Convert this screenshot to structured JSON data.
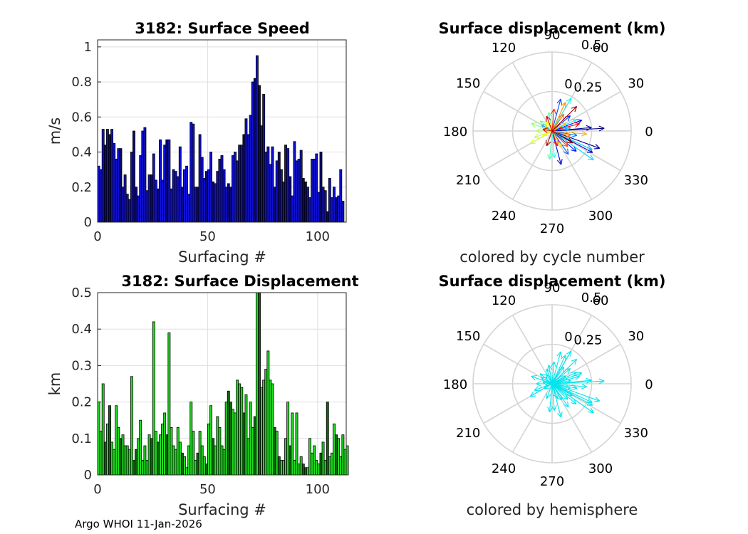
{
  "footer": {
    "text": "Argo WHOI 11-Jan-2026"
  },
  "colors": {
    "speed_bar": "#1010d0",
    "speed_bar_dark": "#0a0a70",
    "disp_bar": "#22dd22",
    "disp_bar_dark": "#116611",
    "hemisphere_arrow": "#00e5ee"
  },
  "chart_data": [
    {
      "type": "bar",
      "title": "3182: Surface Speed",
      "xlabel": "Surfacing #",
      "ylabel": "m/s",
      "xlim": [
        0,
        113
      ],
      "ylim": [
        0,
        1.04
      ],
      "xticks": [
        0,
        50,
        100
      ],
      "xtick_labels": [
        "0",
        "50",
        "100"
      ],
      "yticks": [
        0,
        0.2,
        0.4,
        0.6,
        0.8,
        1
      ],
      "ytick_labels": [
        "0",
        "0.2",
        "0.4",
        "0.6",
        "0.8",
        "1"
      ],
      "grid": true,
      "values": [
        0.32,
        0.3,
        0.53,
        0.44,
        0.53,
        0.5,
        0.53,
        0.45,
        0.36,
        0.42,
        0.42,
        0.2,
        0.27,
        0.16,
        0.13,
        0.4,
        0.52,
        0.2,
        0.15,
        0.38,
        0.52,
        0.54,
        0.18,
        0.27,
        0.27,
        0.39,
        0.24,
        0.19,
        0.47,
        0.24,
        0.44,
        0.47,
        0.47,
        0.19,
        0.3,
        0.29,
        0.26,
        0.43,
        0.2,
        0.3,
        0.32,
        0.16,
        0.57,
        0.56,
        0.2,
        0.2,
        0.5,
        0.37,
        0.25,
        0.29,
        0.3,
        0.4,
        0.23,
        0.22,
        0.29,
        0.36,
        0.38,
        0.3,
        0.2,
        0.22,
        0.2,
        0.38,
        0.4,
        0.35,
        0.44,
        0.44,
        0.5,
        0.59,
        0.5,
        0.61,
        0.8,
        0.82,
        0.95,
        0.78,
        0.55,
        0.73,
        0.4,
        0.43,
        0.33,
        0.43,
        0.2,
        0.35,
        0.4,
        0.3,
        0.23,
        0.44,
        0.42,
        0.26,
        0.15,
        0.46,
        0.35,
        0.36,
        0.41,
        0.25,
        0.23,
        0.2,
        0.14,
        0.36,
        0.36,
        0.39,
        0.17,
        0.4,
        0.2,
        0.18,
        0.06,
        0.25,
        0.14,
        0.2,
        0.14,
        0.15,
        0.3,
        0.12
      ]
    },
    {
      "type": "bar",
      "title": "3182: Surface Displacement",
      "xlabel": "Surfacing #",
      "ylabel": "km",
      "xlim": [
        0,
        113
      ],
      "ylim": [
        0,
        0.5
      ],
      "xticks": [
        0,
        50,
        100
      ],
      "xtick_labels": [
        "0",
        "50",
        "100"
      ],
      "yticks": [
        0,
        0.1,
        0.2,
        0.3,
        0.4,
        0.5
      ],
      "ytick_labels": [
        "0",
        "0.1",
        "0.2",
        "0.3",
        "0.4",
        "0.5"
      ],
      "grid": true,
      "values": [
        0.2,
        0.12,
        0.25,
        0.09,
        0.14,
        0.19,
        0.09,
        0.07,
        0.19,
        0.13,
        0.1,
        0.11,
        0.08,
        0.08,
        0.07,
        0.27,
        0.04,
        0.07,
        0.1,
        0.15,
        0.04,
        0.08,
        0.04,
        0.11,
        0.1,
        0.42,
        0.12,
        0.09,
        0.11,
        0.14,
        0.17,
        0.11,
        0.39,
        0.13,
        0.08,
        0.07,
        0.13,
        0.09,
        0.06,
        0.05,
        0.02,
        0.08,
        0.2,
        0.12,
        0.04,
        0.06,
        0.12,
        0.08,
        0.05,
        0.03,
        0.14,
        0.19,
        0.1,
        0.08,
        0.16,
        0.13,
        0.08,
        0.07,
        0.2,
        0.23,
        0.2,
        0.18,
        0.17,
        0.26,
        0.25,
        0.24,
        0.17,
        0.22,
        0.1,
        0.2,
        0.13,
        0.16,
        0.5,
        0.5,
        0.24,
        0.26,
        0.29,
        0.34,
        0.26,
        0.25,
        0.13,
        0.12,
        0.05,
        0.04,
        0.04,
        0.1,
        0.2,
        0.08,
        0.17,
        0.04,
        0.17,
        0.03,
        0.05,
        0.03,
        0.02,
        0.02,
        0.1,
        0.06,
        0.08,
        0.04,
        0.03,
        0.06,
        0.09,
        0.04,
        0.2,
        0.05,
        0.06,
        0.14,
        0.11,
        0.1,
        0.05,
        0.11,
        0.07,
        0.08
      ]
    },
    {
      "type": "polar-arrows",
      "title": "Surface displacement (km)",
      "caption": "colored by cycle number",
      "rmax": 0.5,
      "radial_ticks": [
        0.25,
        0.5
      ],
      "radial_tick_labels": [
        "0.25",
        "0.5"
      ],
      "zero_label": "0",
      "angle_ticks": [
        0,
        30,
        60,
        90,
        120,
        150,
        180,
        210,
        240,
        270,
        300,
        330
      ],
      "angle_tick_labels": [
        "0",
        "30",
        "60",
        "90",
        "120",
        "150",
        "180",
        "210",
        "240",
        "270",
        "300",
        "330"
      ],
      "color_mode": "cycle",
      "vectors": [
        {
          "angle_deg": 3,
          "r": 0.33
        },
        {
          "angle_deg": -20,
          "r": 0.32
        },
        {
          "angle_deg": 5,
          "r": 0.25
        },
        {
          "angle_deg": -28,
          "r": 0.29
        },
        {
          "angle_deg": -75,
          "r": 0.22
        },
        {
          "angle_deg": 20,
          "r": 0.2
        },
        {
          "angle_deg": -40,
          "r": 0.2
        },
        {
          "angle_deg": 40,
          "r": 0.15
        },
        {
          "angle_deg": 75,
          "r": 0.21
        },
        {
          "angle_deg": -55,
          "r": 0.18
        },
        {
          "angle_deg": -10,
          "r": 0.16
        },
        {
          "angle_deg": 150,
          "r": 0.08
        },
        {
          "angle_deg": 10,
          "r": 0.12
        },
        {
          "angle_deg": -25,
          "r": 0.28
        },
        {
          "angle_deg": -35,
          "r": 0.32
        },
        {
          "angle_deg": 25,
          "r": 0.17
        },
        {
          "angle_deg": 60,
          "r": 0.24
        },
        {
          "angle_deg": -85,
          "r": 0.17
        },
        {
          "angle_deg": -95,
          "r": 0.18
        },
        {
          "angle_deg": 100,
          "r": 0.12
        },
        {
          "angle_deg": 140,
          "r": 0.1
        },
        {
          "angle_deg": 160,
          "r": 0.14
        },
        {
          "angle_deg": 180,
          "r": 0.1
        },
        {
          "angle_deg": 200,
          "r": 0.12
        },
        {
          "angle_deg": 210,
          "r": 0.16
        },
        {
          "angle_deg": -150,
          "r": 0.06
        },
        {
          "angle_deg": 120,
          "r": 0.07
        },
        {
          "angle_deg": -60,
          "r": 0.12
        },
        {
          "angle_deg": 30,
          "r": 0.1
        },
        {
          "angle_deg": -5,
          "r": 0.22
        },
        {
          "angle_deg": 65,
          "r": 0.2
        },
        {
          "angle_deg": -15,
          "r": 0.12
        },
        {
          "angle_deg": 55,
          "r": 0.13
        },
        {
          "angle_deg": -45,
          "r": 0.14
        },
        {
          "angle_deg": 85,
          "r": 0.14
        },
        {
          "angle_deg": -70,
          "r": 0.1
        },
        {
          "angle_deg": 15,
          "r": 0.18
        },
        {
          "angle_deg": 170,
          "r": 0.06
        },
        {
          "angle_deg": 110,
          "r": 0.1
        },
        {
          "angle_deg": -110,
          "r": 0.1
        },
        {
          "angle_deg": 45,
          "r": 0.22
        },
        {
          "angle_deg": -30,
          "r": 0.15
        }
      ]
    },
    {
      "type": "polar-arrows",
      "title": "Surface displacement (km)",
      "caption": "colored by hemisphere",
      "rmax": 0.5,
      "radial_ticks": [
        0.25,
        0.5
      ],
      "radial_tick_labels": [
        "0.25",
        "0.5"
      ],
      "zero_label": "0",
      "angle_ticks": [
        0,
        30,
        60,
        90,
        120,
        150,
        180,
        210,
        240,
        270,
        300,
        330
      ],
      "angle_tick_labels": [
        "0",
        "30",
        "60",
        "90",
        "120",
        "150",
        "180",
        "210",
        "240",
        "270",
        "300",
        "330"
      ],
      "color_mode": "hemisphere",
      "vectors": [
        {
          "angle_deg": 3,
          "r": 0.33
        },
        {
          "angle_deg": -20,
          "r": 0.32
        },
        {
          "angle_deg": 5,
          "r": 0.25
        },
        {
          "angle_deg": -28,
          "r": 0.29
        },
        {
          "angle_deg": -75,
          "r": 0.22
        },
        {
          "angle_deg": 20,
          "r": 0.2
        },
        {
          "angle_deg": -40,
          "r": 0.2
        },
        {
          "angle_deg": 40,
          "r": 0.15
        },
        {
          "angle_deg": 75,
          "r": 0.21
        },
        {
          "angle_deg": -55,
          "r": 0.18
        },
        {
          "angle_deg": -10,
          "r": 0.16
        },
        {
          "angle_deg": 150,
          "r": 0.08
        },
        {
          "angle_deg": 10,
          "r": 0.12
        },
        {
          "angle_deg": -25,
          "r": 0.28
        },
        {
          "angle_deg": -35,
          "r": 0.32
        },
        {
          "angle_deg": 25,
          "r": 0.17
        },
        {
          "angle_deg": 60,
          "r": 0.24
        },
        {
          "angle_deg": -85,
          "r": 0.17
        },
        {
          "angle_deg": -95,
          "r": 0.18
        },
        {
          "angle_deg": 100,
          "r": 0.12
        },
        {
          "angle_deg": 140,
          "r": 0.1
        },
        {
          "angle_deg": 160,
          "r": 0.14
        },
        {
          "angle_deg": 180,
          "r": 0.1
        },
        {
          "angle_deg": 200,
          "r": 0.12
        },
        {
          "angle_deg": 210,
          "r": 0.16
        },
        {
          "angle_deg": -150,
          "r": 0.06
        },
        {
          "angle_deg": 120,
          "r": 0.07
        },
        {
          "angle_deg": -60,
          "r": 0.12
        },
        {
          "angle_deg": 30,
          "r": 0.1
        },
        {
          "angle_deg": -5,
          "r": 0.22
        },
        {
          "angle_deg": 65,
          "r": 0.2
        },
        {
          "angle_deg": -15,
          "r": 0.12
        },
        {
          "angle_deg": 55,
          "r": 0.13
        },
        {
          "angle_deg": -45,
          "r": 0.14
        },
        {
          "angle_deg": 85,
          "r": 0.14
        },
        {
          "angle_deg": -70,
          "r": 0.1
        },
        {
          "angle_deg": 15,
          "r": 0.18
        },
        {
          "angle_deg": 170,
          "r": 0.06
        },
        {
          "angle_deg": 110,
          "r": 0.1
        },
        {
          "angle_deg": -110,
          "r": 0.1
        },
        {
          "angle_deg": 45,
          "r": 0.22
        },
        {
          "angle_deg": -30,
          "r": 0.15
        }
      ]
    }
  ]
}
